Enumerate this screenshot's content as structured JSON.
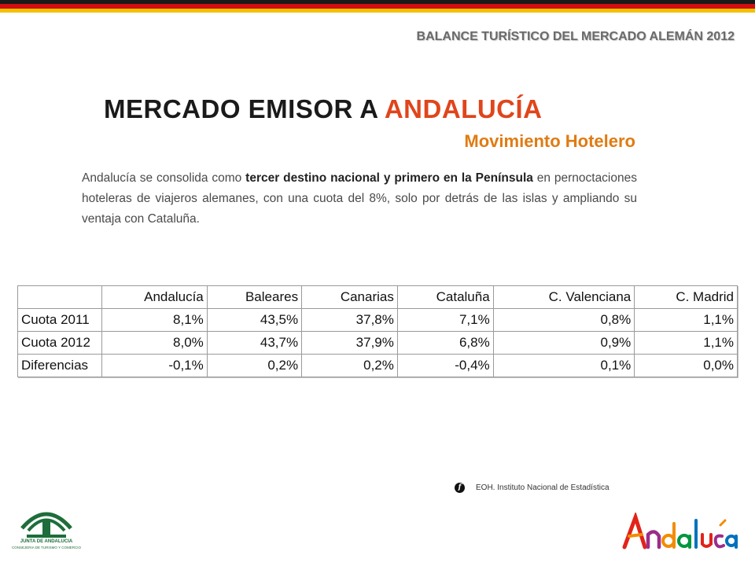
{
  "header": {
    "title": "BALANCE TURÍSTICO DEL MERCADO ALEMÁN 2012"
  },
  "main_title": {
    "prefix": "MERCADO EMISOR A ",
    "accent": "ANDALUCÍA",
    "subtitle": "Movimiento Hotelero"
  },
  "intro": {
    "part1": "Andalucía se consolida como ",
    "bold": "tercer destino nacional y primero en la Península",
    "part2": " en pernoctaciones hoteleras de viajeros alemanes, con una cuota del 8%, solo por detrás de las islas y ampliando su ventaja con Cataluña."
  },
  "table": {
    "columns": [
      "Andalucía",
      "Baleares",
      "Canarias",
      "Cataluña",
      "C. Valenciana",
      "C. Madrid"
    ],
    "rows": [
      {
        "label": "Cuota 2011",
        "values": [
          "8,1%",
          "43,5%",
          "37,8%",
          "7,1%",
          "0,8%",
          "1,1%"
        ]
      },
      {
        "label": "Cuota 2012",
        "values": [
          "8,0%",
          "43,7%",
          "37,9%",
          "6,8%",
          "0,9%",
          "1,1%"
        ]
      },
      {
        "label": "Diferencias",
        "values": [
          "-0,1%",
          "0,2%",
          "0,2%",
          "-0,4%",
          "0,1%",
          "0,0%"
        ]
      }
    ]
  },
  "source": {
    "icon": "source-f-icon",
    "glyph": "f",
    "text": "EOH. Instituto Nacional de Estadística"
  },
  "logos": {
    "junta_line1": "JUNTA DE ANDALUCIA",
    "junta_line2": "CONSEJERIA DE TURISMO Y COMERCIO",
    "andalucia": "Andalucía"
  },
  "colors": {
    "accent_red": "#e0451b",
    "accent_orange": "#e07b12",
    "flag_black": "#1a1a1a",
    "flag_red": "#d10f0f",
    "flag_gold": "#f2c200",
    "junta_green": "#1e6d3a"
  }
}
